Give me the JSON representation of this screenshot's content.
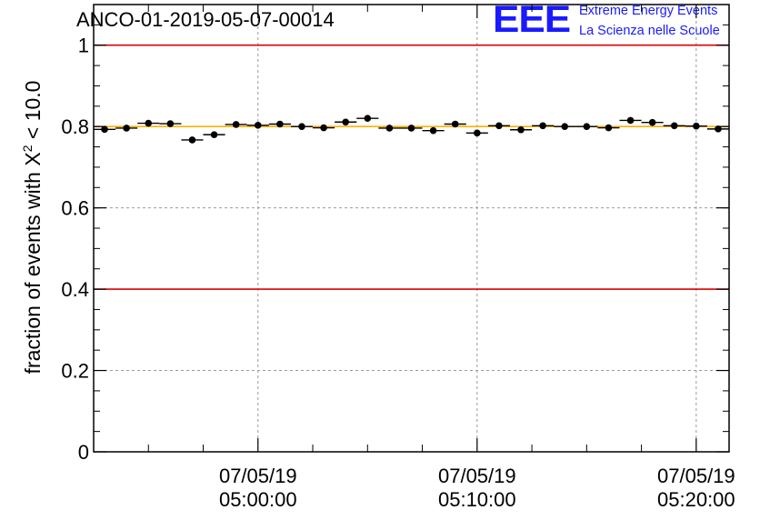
{
  "header": {
    "run_title": "ANCO-01-2019-05-07-00014"
  },
  "logo": {
    "mark": "EEE",
    "line1": "Extreme Energy Events",
    "line2": "La Scienza nelle Scuole"
  },
  "chart_data": {
    "type": "scatter",
    "title": "ANCO-01-2019-05-07-00014",
    "ylabel_prefix": "fraction of events with X",
    "ylabel_sup": "2",
    "ylabel_suffix": " < 10.0",
    "xlabel": "",
    "x_unit": "minutes after 04:52:30 on 07/05/19",
    "xlim": [
      0,
      29
    ],
    "ylim": [
      0,
      1.1
    ],
    "yticks": [
      0,
      0.2,
      0.4,
      0.6,
      0.8,
      1
    ],
    "ytick_labels": [
      "0",
      "0.2",
      "0.4",
      "0.6",
      "0.8",
      "1"
    ],
    "xticks": [
      {
        "x": 7.5,
        "date": "07/05/19",
        "time": "05:00:00"
      },
      {
        "x": 17.5,
        "date": "07/05/19",
        "time": "05:10:00"
      },
      {
        "x": 27.5,
        "date": "07/05/19",
        "time": "05:20:00"
      }
    ],
    "grid": true,
    "reference_lines": [
      {
        "y": 1.0,
        "color": "#e00000"
      },
      {
        "y": 0.4,
        "color": "#e00000"
      },
      {
        "y": 0.8,
        "color": "#ffb000"
      }
    ],
    "bin_width": 1,
    "points": [
      {
        "x": 0.5,
        "y": 0.793
      },
      {
        "x": 1.5,
        "y": 0.796
      },
      {
        "x": 2.5,
        "y": 0.808
      },
      {
        "x": 3.5,
        "y": 0.807
      },
      {
        "x": 4.5,
        "y": 0.767
      },
      {
        "x": 5.5,
        "y": 0.78
      },
      {
        "x": 6.5,
        "y": 0.805
      },
      {
        "x": 7.5,
        "y": 0.803
      },
      {
        "x": 8.5,
        "y": 0.806
      },
      {
        "x": 9.5,
        "y": 0.8
      },
      {
        "x": 10.5,
        "y": 0.797
      },
      {
        "x": 11.5,
        "y": 0.811
      },
      {
        "x": 12.5,
        "y": 0.82
      },
      {
        "x": 13.5,
        "y": 0.796
      },
      {
        "x": 14.5,
        "y": 0.796
      },
      {
        "x": 15.5,
        "y": 0.79
      },
      {
        "x": 16.5,
        "y": 0.806
      },
      {
        "x": 17.5,
        "y": 0.784
      },
      {
        "x": 18.5,
        "y": 0.802
      },
      {
        "x": 19.5,
        "y": 0.792
      },
      {
        "x": 20.5,
        "y": 0.802
      },
      {
        "x": 21.5,
        "y": 0.8
      },
      {
        "x": 22.5,
        "y": 0.8
      },
      {
        "x": 23.5,
        "y": 0.797
      },
      {
        "x": 24.5,
        "y": 0.815
      },
      {
        "x": 25.5,
        "y": 0.81
      },
      {
        "x": 26.5,
        "y": 0.802
      },
      {
        "x": 27.5,
        "y": 0.801
      },
      {
        "x": 28.5,
        "y": 0.794
      }
    ]
  }
}
